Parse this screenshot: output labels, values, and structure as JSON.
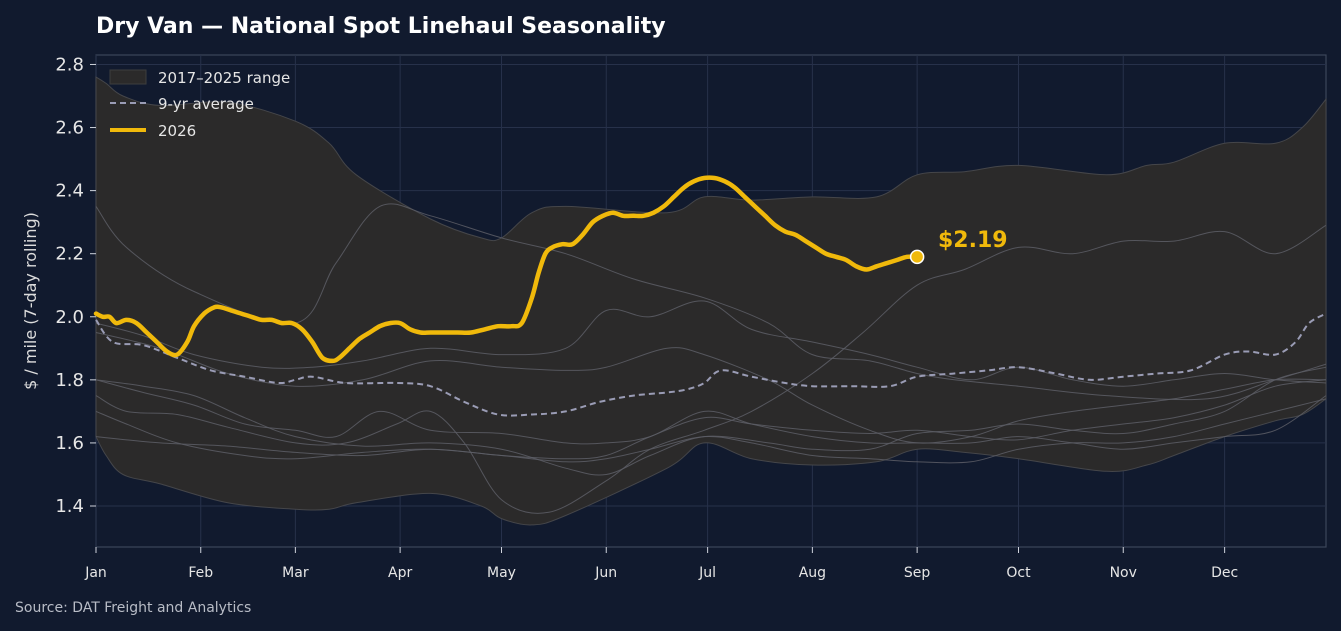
{
  "chart_data": {
    "type": "line",
    "title": "Dry Van — National Spot Linehaul Seasonality",
    "ylabel": "$ / mile (7-day rolling)",
    "xlabel": "",
    "source": "Source: DAT Freight and Analytics",
    "x_unit": "day of year",
    "xlim": [
      1,
      365
    ],
    "ylim": [
      1.27,
      2.83
    ],
    "yticks": [
      1.4,
      1.6,
      1.8,
      2.0,
      2.2,
      2.4,
      2.6,
      2.8
    ],
    "ytick_labels": [
      "1.4",
      "1.6",
      "1.8",
      "2.0",
      "2.2",
      "2.4",
      "2.6",
      "2.8"
    ],
    "month_ticks": [
      {
        "label": "Jan",
        "day": 1
      },
      {
        "label": "Feb",
        "day": 32
      },
      {
        "label": "Mar",
        "day": 60
      },
      {
        "label": "Apr",
        "day": 91
      },
      {
        "label": "May",
        "day": 121
      },
      {
        "label": "Jun",
        "day": 152
      },
      {
        "label": "Jul",
        "day": 182
      },
      {
        "label": "Aug",
        "day": 213
      },
      {
        "label": "Sep",
        "day": 244
      },
      {
        "label": "Oct",
        "day": 274
      },
      {
        "label": "Nov",
        "day": 305
      },
      {
        "label": "Dec",
        "day": 335
      }
    ],
    "grid": true,
    "legend_position": "top-left",
    "legend": [
      {
        "label": "2017–2025 range",
        "style": "band"
      },
      {
        "label": "9-yr average",
        "style": "dashed"
      },
      {
        "label": "2026",
        "style": "line"
      }
    ],
    "colors": {
      "background": "#111a2e",
      "range_band": "#2b2a2a",
      "history_lines": "#5d5e66",
      "average": "#9a9cb5",
      "current": "#f0b90b",
      "grid": "#27314a",
      "axis": "#3c4659"
    },
    "range_band": {
      "x": [
        1,
        4,
        9,
        20,
        40,
        60,
        70,
        78,
        100,
        115,
        121,
        130,
        140,
        170,
        181,
        195,
        213,
        232,
        244,
        258,
        274,
        300,
        312,
        320,
        335,
        350,
        358,
        365
      ],
      "upper": [
        2.76,
        2.74,
        2.7,
        2.67,
        2.68,
        2.62,
        2.55,
        2.45,
        2.31,
        2.25,
        2.25,
        2.33,
        2.35,
        2.33,
        2.38,
        2.37,
        2.38,
        2.38,
        2.45,
        2.46,
        2.48,
        2.45,
        2.48,
        2.49,
        2.55,
        2.55,
        2.6,
        2.69
      ],
      "lower": [
        1.62,
        1.56,
        1.5,
        1.47,
        1.41,
        1.39,
        1.39,
        1.41,
        1.44,
        1.4,
        1.36,
        1.34,
        1.37,
        1.52,
        1.6,
        1.55,
        1.53,
        1.54,
        1.58,
        1.57,
        1.55,
        1.51,
        1.53,
        1.56,
        1.62,
        1.67,
        1.69,
        1.74
      ]
    },
    "average": {
      "x": [
        1,
        6,
        15,
        25,
        35,
        45,
        55,
        60,
        65,
        75,
        90,
        100,
        110,
        120,
        130,
        140,
        150,
        160,
        170,
        176,
        181,
        186,
        195,
        205,
        213,
        225,
        236,
        244,
        255,
        265,
        274,
        285,
        295,
        305,
        315,
        325,
        335,
        342,
        350,
        356,
        360,
        365
      ],
      "y": [
        1.99,
        1.92,
        1.91,
        1.87,
        1.83,
        1.81,
        1.79,
        1.8,
        1.81,
        1.79,
        1.79,
        1.78,
        1.73,
        1.69,
        1.69,
        1.7,
        1.73,
        1.75,
        1.76,
        1.77,
        1.79,
        1.83,
        1.81,
        1.79,
        1.78,
        1.78,
        1.78,
        1.81,
        1.82,
        1.83,
        1.84,
        1.82,
        1.8,
        1.81,
        1.82,
        1.83,
        1.88,
        1.89,
        1.88,
        1.92,
        1.98,
        2.01
      ]
    },
    "history": [
      {
        "x": [
          1,
          10,
          30,
          60,
          72,
          85,
          100,
          121,
          140,
          160,
          181,
          200,
          213,
          230,
          244,
          255,
          274,
          300,
          330,
          350,
          365
        ],
        "y": [
          2.35,
          2.22,
          2.08,
          1.98,
          2.17,
          2.35,
          2.32,
          2.25,
          2.2,
          2.12,
          2.06,
          1.98,
          1.88,
          1.86,
          1.82,
          1.8,
          1.78,
          1.75,
          1.74,
          1.8,
          1.85
        ]
      },
      {
        "x": [
          1,
          10,
          25,
          40,
          60,
          75,
          90,
          100,
          110,
          121,
          135,
          152,
          165,
          181,
          195,
          213,
          228,
          244,
          258,
          274,
          290,
          305,
          320,
          335,
          350,
          365
        ],
        "y": [
          1.75,
          1.7,
          1.69,
          1.65,
          1.6,
          1.6,
          1.66,
          1.7,
          1.6,
          1.42,
          1.38,
          1.48,
          1.58,
          1.64,
          1.7,
          1.82,
          1.95,
          2.1,
          2.15,
          2.22,
          2.2,
          2.24,
          2.24,
          2.27,
          2.2,
          2.29
        ]
      },
      {
        "x": [
          1,
          15,
          30,
          45,
          60,
          80,
          100,
          121,
          140,
          152,
          165,
          181,
          200,
          213,
          230,
          244,
          260,
          274,
          290,
          305,
          320,
          335,
          350,
          365
        ],
        "y": [
          1.8,
          1.78,
          1.75,
          1.68,
          1.62,
          1.59,
          1.6,
          1.58,
          1.52,
          1.5,
          1.56,
          1.62,
          1.6,
          1.58,
          1.58,
          1.63,
          1.64,
          1.66,
          1.64,
          1.63,
          1.66,
          1.7,
          1.8,
          1.84
        ]
      },
      {
        "x": [
          1,
          20,
          40,
          60,
          80,
          100,
          121,
          140,
          152,
          170,
          181,
          200,
          213,
          230,
          244,
          260,
          274,
          290,
          305,
          320,
          335,
          350,
          365
        ],
        "y": [
          1.95,
          1.9,
          1.82,
          1.78,
          1.8,
          1.86,
          1.84,
          1.83,
          1.84,
          1.9,
          1.88,
          1.8,
          1.72,
          1.64,
          1.6,
          1.62,
          1.67,
          1.7,
          1.72,
          1.74,
          1.77,
          1.8,
          1.8
        ]
      },
      {
        "x": [
          1,
          15,
          30,
          50,
          65,
          80,
          100,
          121,
          140,
          152,
          165,
          181,
          195,
          213,
          230,
          244,
          260,
          274,
          290,
          305,
          320,
          335,
          350,
          365
        ],
        "y": [
          1.98,
          1.94,
          1.88,
          1.84,
          1.84,
          1.86,
          1.9,
          1.88,
          1.9,
          2.02,
          2.0,
          2.05,
          1.96,
          1.92,
          1.88,
          1.84,
          1.8,
          1.84,
          1.8,
          1.78,
          1.8,
          1.82,
          1.8,
          1.79
        ]
      },
      {
        "x": [
          1,
          10,
          25,
          45,
          60,
          80,
          100,
          121,
          140,
          152,
          165,
          181,
          195,
          213,
          230,
          244,
          260,
          274,
          290,
          305,
          320,
          335,
          350,
          365
        ],
        "y": [
          1.7,
          1.66,
          1.6,
          1.56,
          1.55,
          1.57,
          1.58,
          1.56,
          1.54,
          1.55,
          1.58,
          1.62,
          1.6,
          1.56,
          1.55,
          1.54,
          1.54,
          1.58,
          1.6,
          1.6,
          1.62,
          1.66,
          1.7,
          1.74
        ]
      },
      {
        "x": [
          1,
          15,
          30,
          45,
          60,
          72,
          85,
          100,
          121,
          140,
          152,
          165,
          181,
          195,
          213,
          230,
          244,
          260,
          274,
          290,
          305,
          320,
          335,
          350,
          365
        ],
        "y": [
          1.8,
          1.76,
          1.72,
          1.66,
          1.64,
          1.62,
          1.7,
          1.64,
          1.63,
          1.6,
          1.6,
          1.62,
          1.7,
          1.66,
          1.62,
          1.6,
          1.6,
          1.6,
          1.62,
          1.6,
          1.58,
          1.6,
          1.62,
          1.64,
          1.75
        ]
      },
      {
        "x": [
          1,
          20,
          40,
          60,
          80,
          100,
          121,
          140,
          152,
          165,
          181,
          195,
          213,
          230,
          244,
          260,
          274,
          290,
          305,
          320,
          335,
          350,
          365
        ],
        "y": [
          1.62,
          1.6,
          1.59,
          1.57,
          1.56,
          1.58,
          1.56,
          1.55,
          1.56,
          1.62,
          1.68,
          1.66,
          1.64,
          1.63,
          1.64,
          1.62,
          1.61,
          1.64,
          1.66,
          1.68,
          1.72,
          1.78,
          1.8
        ]
      }
    ],
    "series": [
      {
        "name": "2026",
        "x": [
          1,
          3,
          5,
          7,
          10,
          13,
          16,
          19,
          22,
          25,
          28,
          30,
          33,
          36,
          38,
          41,
          44,
          47,
          50,
          53,
          56,
          59,
          62,
          65,
          68,
          71,
          73,
          76,
          79,
          82,
          85,
          88,
          91,
          94,
          97,
          100,
          104,
          108,
          112,
          116,
          120,
          124,
          127,
          130,
          132,
          134,
          136,
          139,
          142,
          145,
          148,
          151,
          154,
          157,
          160,
          163,
          166,
          169,
          172,
          175,
          178,
          181,
          184,
          187,
          190,
          193,
          196,
          199,
          202,
          205,
          208,
          211,
          214,
          217,
          220,
          223,
          226,
          229,
          232,
          235,
          238,
          241,
          244
        ],
        "y": [
          2.01,
          2.0,
          2.0,
          1.98,
          1.99,
          1.98,
          1.95,
          1.92,
          1.89,
          1.88,
          1.92,
          1.97,
          2.01,
          2.03,
          2.03,
          2.02,
          2.01,
          2.0,
          1.99,
          1.99,
          1.98,
          1.98,
          1.96,
          1.92,
          1.87,
          1.86,
          1.87,
          1.9,
          1.93,
          1.95,
          1.97,
          1.98,
          1.98,
          1.96,
          1.95,
          1.95,
          1.95,
          1.95,
          1.95,
          1.96,
          1.97,
          1.97,
          1.98,
          2.06,
          2.14,
          2.2,
          2.22,
          2.23,
          2.23,
          2.26,
          2.3,
          2.32,
          2.33,
          2.32,
          2.32,
          2.32,
          2.33,
          2.35,
          2.38,
          2.41,
          2.43,
          2.44,
          2.44,
          2.43,
          2.41,
          2.38,
          2.35,
          2.32,
          2.29,
          2.27,
          2.26,
          2.24,
          2.22,
          2.2,
          2.19,
          2.18,
          2.16,
          2.15,
          2.16,
          2.17,
          2.18,
          2.19,
          2.19
        ]
      }
    ],
    "current_label": "$2.19",
    "current_point": {
      "x": 244,
      "y": 2.19
    }
  }
}
